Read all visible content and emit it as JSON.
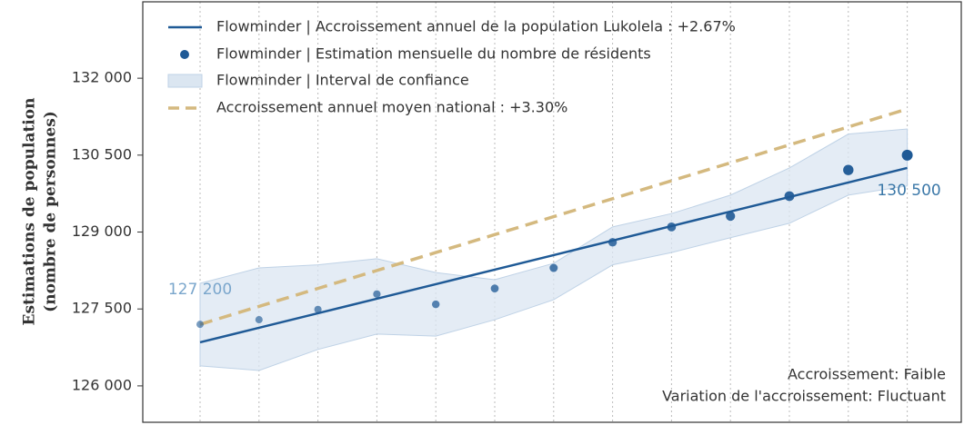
{
  "chart_data": {
    "type": "line",
    "ylabel": [
      "Estimations de population",
      "(nombre de personnes)"
    ],
    "categories": [
      null,
      null,
      null,
      null,
      null,
      null,
      null,
      null,
      null,
      null,
      null,
      null,
      null
    ],
    "ylim": [
      125290,
      133490
    ],
    "yticks": [
      {
        "value": 126000,
        "label": "126 000"
      },
      {
        "value": 127500,
        "label": "127 500"
      },
      {
        "value": 129000,
        "label": "129 000"
      },
      {
        "value": 130500,
        "label": "130 500"
      },
      {
        "value": 132000,
        "label": "132 000"
      }
    ],
    "xgrid": true,
    "legend": "upper left",
    "series": [
      {
        "name": "Flowminder | Accroissement annuel de la population Lukolela : +2.67%",
        "kind": "line",
        "color": "#1f5a96",
        "values": [
          126850,
          127133,
          127417,
          127700,
          127983,
          128267,
          128550,
          128833,
          129117,
          129400,
          129683,
          129967,
          130250
        ]
      },
      {
        "name": "Flowminder | Estimation mensuelle du nombre de résidents",
        "kind": "scatter",
        "color": "#1f5a96",
        "values": [
          127200,
          127290,
          127490,
          127790,
          127590,
          127900,
          128300,
          128800,
          129100,
          129310,
          129700,
          130210,
          130500
        ],
        "value_labels": [
          "127 200",
          null,
          null,
          null,
          null,
          null,
          null,
          null,
          null,
          null,
          null,
          null,
          "130 500"
        ]
      },
      {
        "name": "Flowminder | Interval de confiance",
        "kind": "band",
        "color": "#dbe6f1",
        "upper": [
          128000,
          128300,
          128360,
          128480,
          128210,
          128070,
          128390,
          129100,
          129360,
          129720,
          130250,
          130910,
          131010
        ],
        "lower": [
          126390,
          126300,
          126710,
          127010,
          126970,
          127290,
          127680,
          128360,
          128600,
          128890,
          129170,
          129720,
          129900
        ]
      },
      {
        "name": "Accroissement annuel moyen national : +3.30%",
        "kind": "dashed",
        "color": "#d4b97f",
        "values": [
          127200,
          127550,
          127900,
          128250,
          128600,
          128950,
          129300,
          129650,
          130000,
          130350,
          130700,
          131050,
          131400
        ]
      }
    ],
    "annotations": [
      "Accroissement: Faible",
      "Variation de l'accroissement: Fluctuant"
    ]
  }
}
